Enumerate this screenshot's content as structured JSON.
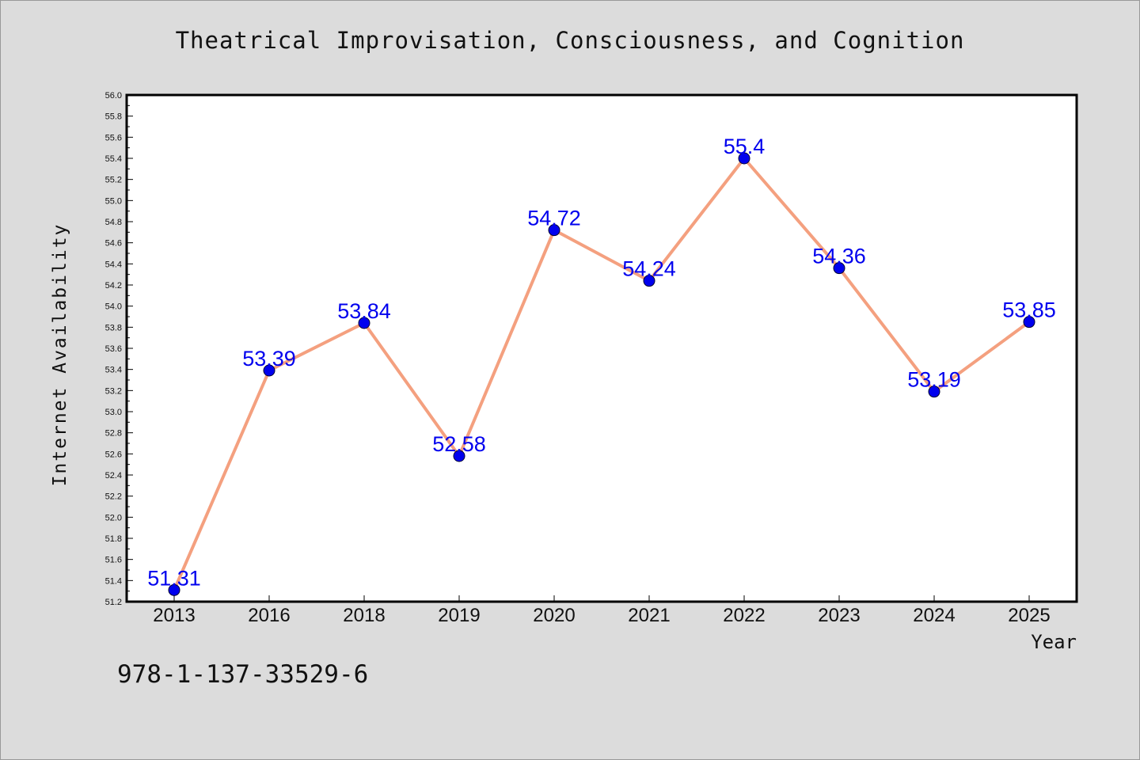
{
  "chart_data": {
    "type": "line",
    "title": "Theatrical Improvisation, Consciousness, and Cognition",
    "xlabel": "Year",
    "ylabel": "Internet Availability",
    "categories": [
      "2013",
      "2016",
      "2018",
      "2019",
      "2020",
      "2021",
      "2022",
      "2023",
      "2024",
      "2025"
    ],
    "series": [
      {
        "values": [
          51.31,
          53.39,
          53.84,
          52.58,
          54.72,
          54.24,
          55.4,
          54.36,
          53.19,
          53.85
        ],
        "data_labels": [
          "51.31",
          "53.39",
          "53.84",
          "52.58",
          "54.72",
          "54.24",
          "55.4",
          "54.36",
          "53.19",
          "53.85"
        ],
        "line_color": "#f4a07f",
        "marker_color": "#0000ee"
      }
    ],
    "ylim": [
      51.2,
      56.0
    ],
    "yticks": [
      "51.2",
      "51.4",
      "51.6",
      "51.8",
      "52.0",
      "52.2",
      "52.4",
      "52.6",
      "52.8",
      "53.0",
      "53.2",
      "53.4",
      "53.6",
      "53.8",
      "54.0",
      "54.2",
      "54.4",
      "54.6",
      "54.8",
      "55.0",
      "55.2",
      "55.4",
      "55.6",
      "55.8",
      "56.0"
    ],
    "grid": false,
    "legend": "none"
  },
  "footer": {
    "isbn": "978-1-137-33529-6"
  },
  "colors": {
    "background": "#dcdcdc",
    "plot_area": "#ffffff",
    "label_text": "#0000ee"
  }
}
